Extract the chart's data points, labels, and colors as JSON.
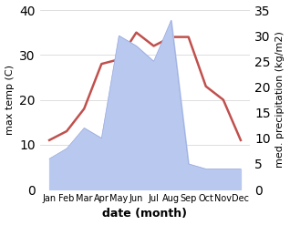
{
  "months": [
    "Jan",
    "Feb",
    "Mar",
    "Apr",
    "May",
    "Jun",
    "Jul",
    "Aug",
    "Sep",
    "Oct",
    "Nov",
    "Dec"
  ],
  "temperature": [
    11,
    13,
    18,
    28,
    29,
    35,
    32,
    34,
    34,
    23,
    20,
    11
  ],
  "precipitation": [
    6,
    8,
    12,
    10,
    30,
    28,
    25,
    33,
    5,
    4,
    4,
    4
  ],
  "temp_color": "#c0504d",
  "precip_fill_color": "#b8c8ee",
  "precip_edge_color": "#9aaade",
  "xlabel": "date (month)",
  "ylabel_left": "max temp (C)",
  "ylabel_right": "med. precipitation (kg/m2)",
  "ylim_left": [
    0,
    40
  ],
  "ylim_right": [
    0,
    35
  ],
  "yticks_left": [
    0,
    10,
    20,
    30,
    40
  ],
  "yticks_right": [
    0,
    5,
    10,
    15,
    20,
    25,
    30,
    35
  ],
  "bg_color": "#ffffff",
  "grid_color": "#d0d0d0",
  "temp_linewidth": 1.8,
  "xlabel_fontsize": 9,
  "ylabel_fontsize": 8,
  "tick_fontsize": 7
}
